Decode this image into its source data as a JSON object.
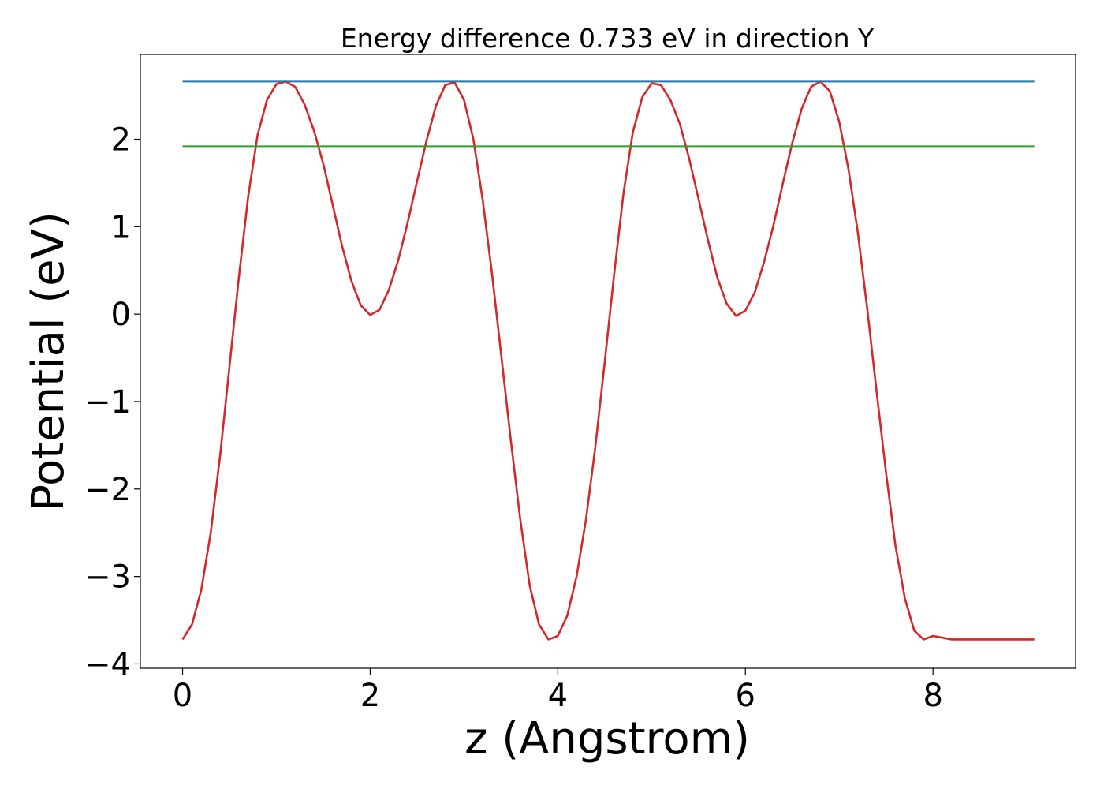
{
  "chart_data": {
    "type": "line",
    "title": "Energy difference 0.733 eV in direction Y",
    "xlabel": "z (Angstrom)",
    "ylabel": "Potential (eV)",
    "xlim": [
      -0.45,
      9.52
    ],
    "ylim": [
      -4.05,
      2.97
    ],
    "xticks": [
      0,
      2,
      4,
      6,
      8
    ],
    "xtick_labels": [
      "0",
      "2",
      "4",
      "6",
      "8"
    ],
    "yticks": [
      -4,
      -3,
      -2,
      -1,
      0,
      1,
      2
    ],
    "ytick_labels": [
      "−4",
      "−3",
      "−2",
      "−1",
      "0",
      "1",
      "2"
    ],
    "grid": false,
    "legend": "none",
    "series": [
      {
        "color": "#d62728",
        "x": [
          0.0,
          0.1,
          0.2,
          0.3,
          0.4,
          0.5,
          0.6,
          0.7,
          0.8,
          0.9,
          1.0,
          1.1,
          1.2,
          1.3,
          1.4,
          1.5,
          1.6,
          1.7,
          1.8,
          1.9,
          2.0,
          2.1,
          2.2,
          2.3,
          2.4,
          2.5,
          2.6,
          2.7,
          2.8,
          2.9,
          3.0,
          3.1,
          3.2,
          3.3,
          3.4,
          3.5,
          3.6,
          3.7,
          3.8,
          3.9,
          4.0,
          4.1,
          4.2,
          4.3,
          4.4,
          4.5,
          4.6,
          4.7,
          4.8,
          4.9,
          5.0,
          5.1,
          5.2,
          5.3,
          5.4,
          5.5,
          5.6,
          5.7,
          5.8,
          5.9,
          6.0,
          6.1,
          6.2,
          6.3,
          6.4,
          6.5,
          6.6,
          6.7,
          6.8,
          6.9,
          7.0,
          7.1,
          7.2,
          7.3,
          7.4,
          7.5,
          7.6,
          7.7,
          7.8,
          7.9,
          8.0,
          8.1,
          8.2,
          8.3,
          8.4,
          8.5,
          8.6,
          8.7,
          8.8,
          8.9,
          9.0,
          9.08
        ],
        "y": [
          -3.72,
          -3.55,
          -3.15,
          -2.5,
          -1.62,
          -0.6,
          0.42,
          1.35,
          2.05,
          2.45,
          2.63,
          2.66,
          2.6,
          2.4,
          2.1,
          1.72,
          1.25,
          0.78,
          0.38,
          0.1,
          -0.01,
          0.05,
          0.28,
          0.62,
          1.05,
          1.52,
          1.98,
          2.38,
          2.62,
          2.65,
          2.45,
          2.0,
          1.3,
          0.45,
          -0.5,
          -1.45,
          -2.35,
          -3.1,
          -3.55,
          -3.72,
          -3.68,
          -3.45,
          -3.0,
          -2.35,
          -1.52,
          -0.55,
          0.45,
          1.38,
          2.08,
          2.48,
          2.64,
          2.62,
          2.45,
          2.18,
          1.78,
          1.32,
          0.85,
          0.42,
          0.12,
          -0.02,
          0.04,
          0.25,
          0.6,
          1.02,
          1.5,
          1.96,
          2.35,
          2.6,
          2.66,
          2.55,
          2.2,
          1.65,
          0.92,
          0.05,
          -0.9,
          -1.82,
          -2.65,
          -3.25,
          -3.62,
          -3.72,
          -3.68,
          -3.7,
          -3.72,
          -3.72,
          -3.72,
          -3.72,
          -3.72,
          -3.72,
          -3.72,
          -3.72,
          -3.72,
          -3.72
        ]
      },
      {
        "color": "#1f77b4",
        "x": [
          0.0,
          9.08
        ],
        "y": [
          2.66,
          2.66
        ]
      },
      {
        "color": "#2ca02c",
        "x": [
          0.0,
          9.08
        ],
        "y": [
          1.92,
          1.92
        ]
      }
    ]
  }
}
